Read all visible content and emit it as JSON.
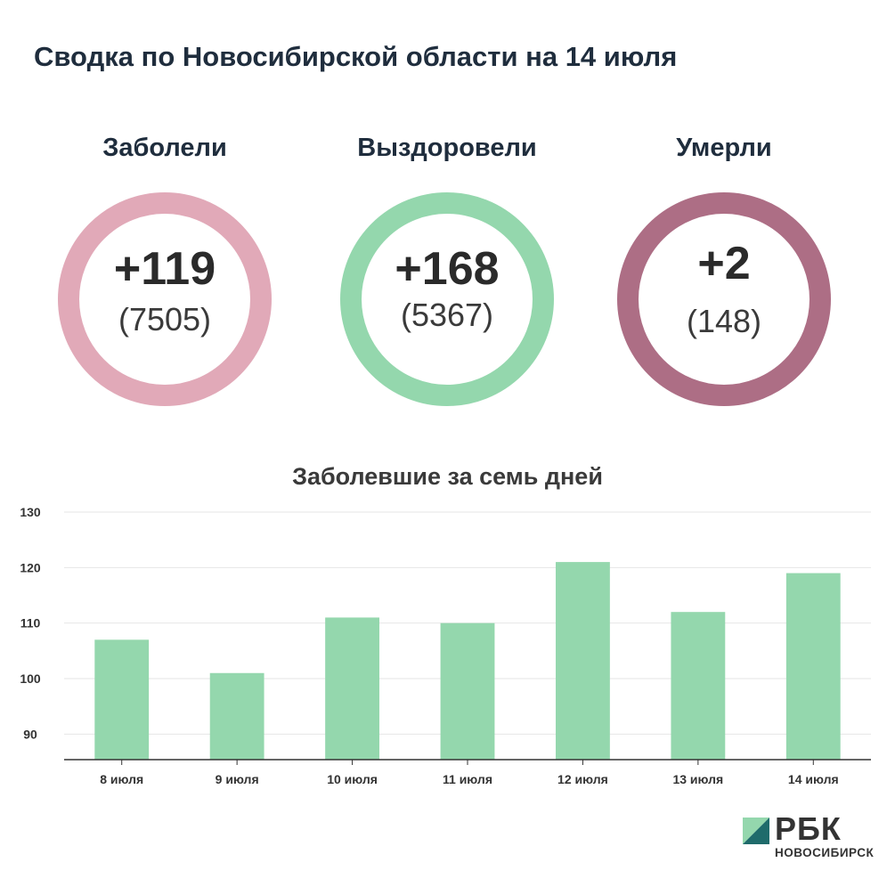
{
  "title": "Сводка по Новосибирской области на 14 июля",
  "stats": [
    {
      "label": "Заболели",
      "delta": "+119",
      "total": "(7505)",
      "color": "#e1a9b8"
    },
    {
      "label": "Выздоровели",
      "delta": "+168",
      "total": "(5367)",
      "color": "#94d7ad"
    },
    {
      "label": "Умерли",
      "delta": "+2",
      "total": "(148)",
      "color": "#ad6e85"
    }
  ],
  "chart_data": {
    "type": "bar",
    "title": "Заболевшие за семь дней",
    "categories": [
      "8 июля",
      "9 июля",
      "10 июля",
      "11 июля",
      "12 июля",
      "13 июля",
      "14 июля"
    ],
    "values": [
      107,
      101,
      111,
      110,
      121,
      112,
      119
    ],
    "yticks": [
      90,
      100,
      110,
      120,
      130
    ],
    "ylim": [
      85.4,
      130
    ],
    "grid": true,
    "bar_color": "#94d7ad",
    "xlabel": "",
    "ylabel": ""
  },
  "logo": {
    "name": "РБК",
    "city": "НОВОСИБИРСК",
    "mark_colors": [
      "#94d7ad",
      "#1f6b6b"
    ]
  }
}
